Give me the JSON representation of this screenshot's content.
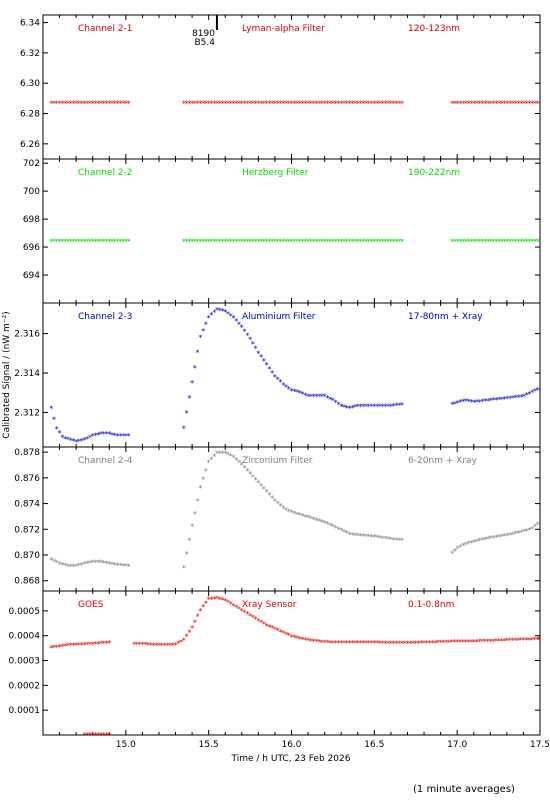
{
  "footnote": "(1 minute averages)",
  "flare_marker": {
    "time": 15.55,
    "label_top": "8190",
    "label_bottom": "B5.4"
  },
  "chart_data": [
    {
      "type": "scatter",
      "labels": [
        "Channel 2-1",
        "Lyman-alpha Filter",
        "120-123nm"
      ],
      "color": "#dd0000",
      "ylim": [
        6.25,
        6.345
      ],
      "yticks": [
        6.26,
        6.28,
        6.3,
        6.32,
        6.34
      ],
      "ytick_labels": [
        "6.26",
        "6.28",
        "6.30",
        "6.32",
        "6.34"
      ],
      "segments": [
        {
          "x": [
            14.55,
            15.02
          ],
          "y": [
            6.2865,
            6.2865
          ]
        },
        {
          "x": [
            15.35,
            16.68
          ],
          "y": [
            6.2865,
            6.2865
          ]
        },
        {
          "x": [
            16.97,
            17.5
          ],
          "y": [
            6.2865,
            6.2865
          ]
        }
      ]
    },
    {
      "type": "scatter",
      "labels": [
        "Channel 2-2",
        "Herzberg Filter",
        "190-222nm"
      ],
      "color": "#00dd00",
      "ylim": [
        692.0,
        702.3
      ],
      "yticks": [
        694,
        696,
        698,
        700,
        702
      ],
      "ytick_labels": [
        "694",
        "696",
        "698",
        "700",
        "702"
      ],
      "segments": [
        {
          "x": [
            14.55,
            15.02
          ],
          "y": [
            696.4,
            696.4
          ]
        },
        {
          "x": [
            15.35,
            16.68
          ],
          "y": [
            696.4,
            696.4
          ]
        },
        {
          "x": [
            16.97,
            17.5
          ],
          "y": [
            696.4,
            696.4
          ]
        }
      ]
    },
    {
      "type": "scatter",
      "labels": [
        "Channel 2-3",
        "Aluminium Filter",
        "17-80nm + Xray"
      ],
      "color": "#0000cc",
      "ylim": [
        2.31025,
        2.31755
      ],
      "yticks": [
        2.312,
        2.314,
        2.316
      ],
      "ytick_labels": [
        "2.312",
        "2.314",
        "2.316"
      ],
      "segments": [
        {
          "x": [
            14.55,
            14.58,
            14.62,
            14.66,
            14.7,
            14.75,
            14.8,
            14.85,
            14.9,
            14.95,
            15.02
          ],
          "y": [
            2.3122,
            2.3112,
            2.3107,
            2.3106,
            2.3105,
            2.3106,
            2.3108,
            2.3109,
            2.3109,
            2.3108,
            2.3108
          ]
        },
        {
          "x": [
            15.35,
            15.4,
            15.45,
            15.5,
            15.55,
            15.6,
            15.65,
            15.7,
            15.75,
            15.8,
            15.85,
            15.9,
            15.95,
            16.0,
            16.05,
            16.1,
            16.15,
            16.2,
            16.25,
            16.3,
            16.35,
            16.4,
            16.5,
            16.6,
            16.68
          ],
          "y": [
            2.3112,
            2.3135,
            2.3158,
            2.3168,
            2.3172,
            2.3171,
            2.3168,
            2.3163,
            2.3157,
            2.315,
            2.3144,
            2.3138,
            2.3134,
            2.3131,
            2.313,
            2.3128,
            2.3128,
            2.3128,
            2.3126,
            2.3123,
            2.3122,
            2.3123,
            2.3123,
            2.3123,
            2.3124
          ]
        },
        {
          "x": [
            16.97,
            17.05,
            17.1,
            17.2,
            17.3,
            17.4,
            17.45,
            17.5
          ],
          "y": [
            2.3124,
            2.3126,
            2.3125,
            2.3126,
            2.3127,
            2.3128,
            2.313,
            2.3132
          ]
        }
      ]
    },
    {
      "type": "scatter",
      "labels": [
        "Channel 2-4",
        "Zirconium Filter",
        "6-20nm + Xray"
      ],
      "color": "#808080",
      "ylim": [
        0.8672,
        0.8784
      ],
      "yticks": [
        0.868,
        0.87,
        0.872,
        0.874,
        0.876,
        0.878
      ],
      "ytick_labels": [
        "0.868",
        "0.870",
        "0.872",
        "0.874",
        "0.876",
        "0.878"
      ],
      "segments": [
        {
          "x": [
            14.55,
            14.6,
            14.65,
            14.7,
            14.75,
            14.8,
            14.85,
            14.9,
            14.95,
            15.02
          ],
          "y": [
            0.8696,
            0.8693,
            0.8691,
            0.8691,
            0.8693,
            0.8694,
            0.8694,
            0.8693,
            0.8692,
            0.8691
          ]
        },
        {
          "x": [
            15.35,
            15.4,
            15.45,
            15.5,
            15.55,
            15.6,
            15.65,
            15.7,
            15.75,
            15.8,
            15.85,
            15.9,
            15.95,
            16.0,
            16.05,
            16.1,
            16.15,
            16.2,
            16.25,
            16.3,
            16.35,
            16.4,
            16.5,
            16.6,
            16.68
          ],
          "y": [
            0.869,
            0.8722,
            0.8752,
            0.8772,
            0.8779,
            0.8779,
            0.8776,
            0.877,
            0.8763,
            0.8756,
            0.8749,
            0.8742,
            0.8736,
            0.8733,
            0.8731,
            0.8729,
            0.8727,
            0.8725,
            0.8722,
            0.8719,
            0.8716,
            0.8715,
            0.8714,
            0.8712,
            0.8711
          ]
        },
        {
          "x": [
            16.97,
            17.0,
            17.05,
            17.1,
            17.2,
            17.3,
            17.4,
            17.45,
            17.5
          ],
          "y": [
            0.8701,
            0.8705,
            0.8708,
            0.871,
            0.8713,
            0.8715,
            0.8718,
            0.872,
            0.8725
          ]
        }
      ]
    },
    {
      "type": "scatter",
      "labels": [
        "GOES",
        "Xray Sensor",
        "0.1-0.8nm"
      ],
      "color": "#dd0000",
      "ylim": [
        0.0,
        0.00058
      ],
      "yticks": [
        0.0001,
        0.0002,
        0.0003,
        0.0004,
        0.0005
      ],
      "ytick_labels": [
        "0.0001",
        "0.0002",
        "0.0003",
        "0.0004",
        "0.0005"
      ],
      "segments": [
        {
          "x": [
            14.55,
            14.6,
            14.65,
            14.7,
            14.75,
            14.8,
            14.85,
            14.9
          ],
          "y": [
            0.00035,
            0.000355,
            0.00036,
            0.000362,
            0.000363,
            0.000365,
            0.000368,
            0.00037
          ]
        },
        {
          "x": [
            15.05,
            15.1,
            15.15,
            15.2,
            15.25,
            15.3,
            15.35,
            15.4,
            15.45,
            15.5,
            15.55,
            15.6,
            15.65,
            15.7,
            15.75,
            15.8,
            15.85,
            15.9,
            16.0,
            16.1,
            16.2,
            16.3,
            16.4,
            16.5,
            16.6,
            16.7,
            16.8,
            16.9,
            17.0,
            17.1,
            17.2,
            17.3,
            17.4,
            17.5
          ],
          "y": [
            0.000365,
            0.000365,
            0.000362,
            0.00036,
            0.00036,
            0.000362,
            0.00038,
            0.00043,
            0.0005,
            0.000545,
            0.00055,
            0.00054,
            0.00052,
            0.0005,
            0.00048,
            0.00046,
            0.00044,
            0.000425,
            0.000395,
            0.00038,
            0.000372,
            0.00037,
            0.00037,
            0.00037,
            0.000368,
            0.000368,
            0.00037,
            0.000372,
            0.000375,
            0.000375,
            0.000377,
            0.00038,
            0.000382,
            0.000385
          ]
        },
        {
          "x": [
            14.75,
            14.9
          ],
          "y": [
            0.0,
            0.0
          ]
        }
      ]
    }
  ],
  "x_axis": {
    "xlim": [
      14.5,
      17.5
    ],
    "ticks": [
      15.0,
      15.5,
      16.0,
      16.5,
      17.0,
      17.5
    ],
    "tick_labels": [
      "15.0",
      "15.5",
      "16.0",
      "16.5",
      "17.0",
      "17.5"
    ],
    "label": "Time / h UTC, 23 Feb 2026"
  },
  "y_axis": {
    "label": "Calibrated Signal / (nW m⁻²)"
  }
}
